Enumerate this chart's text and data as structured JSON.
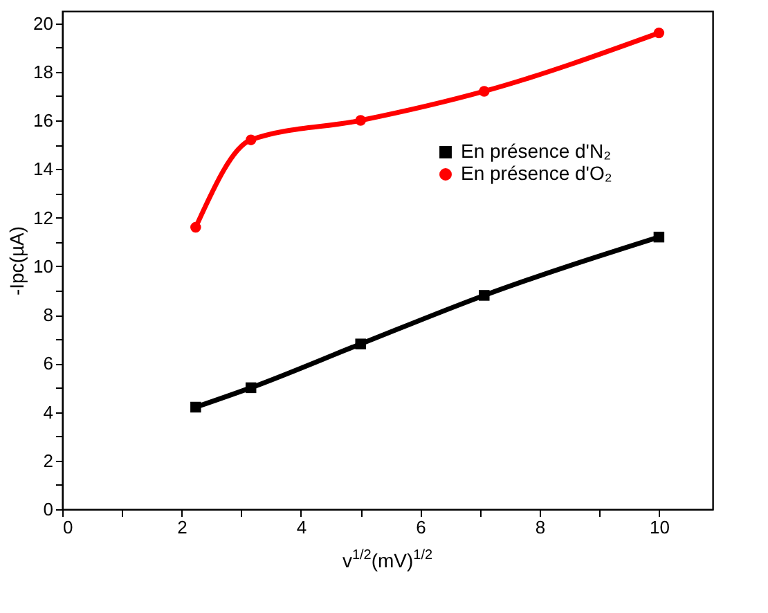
{
  "chart_data": {
    "type": "line",
    "xlabel": "v$^{1/2}$(mV)$^{1/2}$",
    "ylabel": "-Ipc(µA)",
    "x": [
      2.236,
      3.162,
      5,
      7.071,
      10
    ],
    "series": [
      {
        "name": "En présence d'N₂",
        "color": "#000000",
        "marker": "square",
        "values": [
          4.2,
          5.0,
          6.8,
          8.8,
          11.2
        ]
      },
      {
        "name": "En présence d'O₂",
        "color": "#ff0000",
        "marker": "circle",
        "values": [
          11.6,
          15.2,
          16.0,
          17.2,
          19.6
        ]
      }
    ],
    "xlim": [
      0,
      10.9
    ],
    "ylim": [
      0,
      20.5
    ],
    "xticks": [
      0,
      {
        "value": 1,
        "label": null
      },
      2,
      {
        "value": 3,
        "label": null
      },
      4,
      {
        "value": 5,
        "label": null
      },
      6,
      {
        "value": 7,
        "label": null
      },
      8,
      {
        "value": 9,
        "label": null
      },
      10
    ],
    "yticks": [
      0,
      {
        "value": 1,
        "label": null
      },
      2,
      {
        "value": 3,
        "label": null
      },
      4,
      {
        "value": 5,
        "label": null
      },
      6,
      {
        "value": 7,
        "label": null
      },
      8,
      {
        "value": 9,
        "label": null
      },
      10,
      {
        "value": 11,
        "label": null
      },
      12,
      {
        "value": 13,
        "label": null
      },
      14,
      {
        "value": 15,
        "label": null
      },
      16,
      {
        "value": 17,
        "label": null
      },
      18,
      {
        "value": 19,
        "label": null
      },
      20
    ],
    "grid": false,
    "legend": "top right",
    "line_style": "solid"
  }
}
